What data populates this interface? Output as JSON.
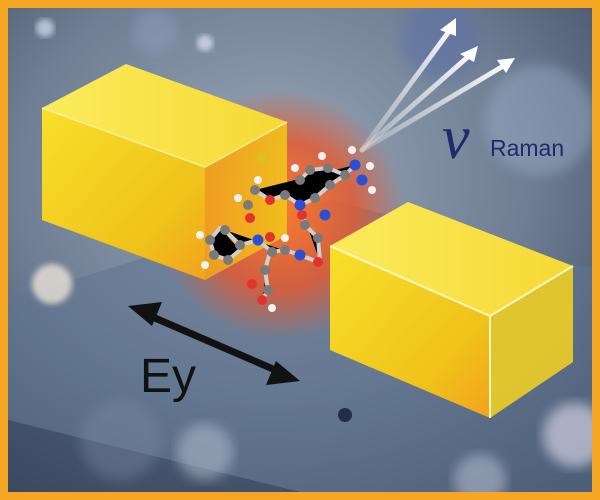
{
  "labels": {
    "nu_symbol": "ν",
    "nu_subscript": "Raman",
    "field": "Ey"
  },
  "colors": {
    "frame": "#f5a623",
    "gold": "#f2d21a",
    "hotspot": "#e8672b",
    "text_blue": "#1f2a6b",
    "arrow": "#111111"
  },
  "icons": {
    "scattered_light": "three-white-arrows",
    "field_direction": "double-headed-arrow",
    "molecule": "ball-and-stick-peptide"
  }
}
